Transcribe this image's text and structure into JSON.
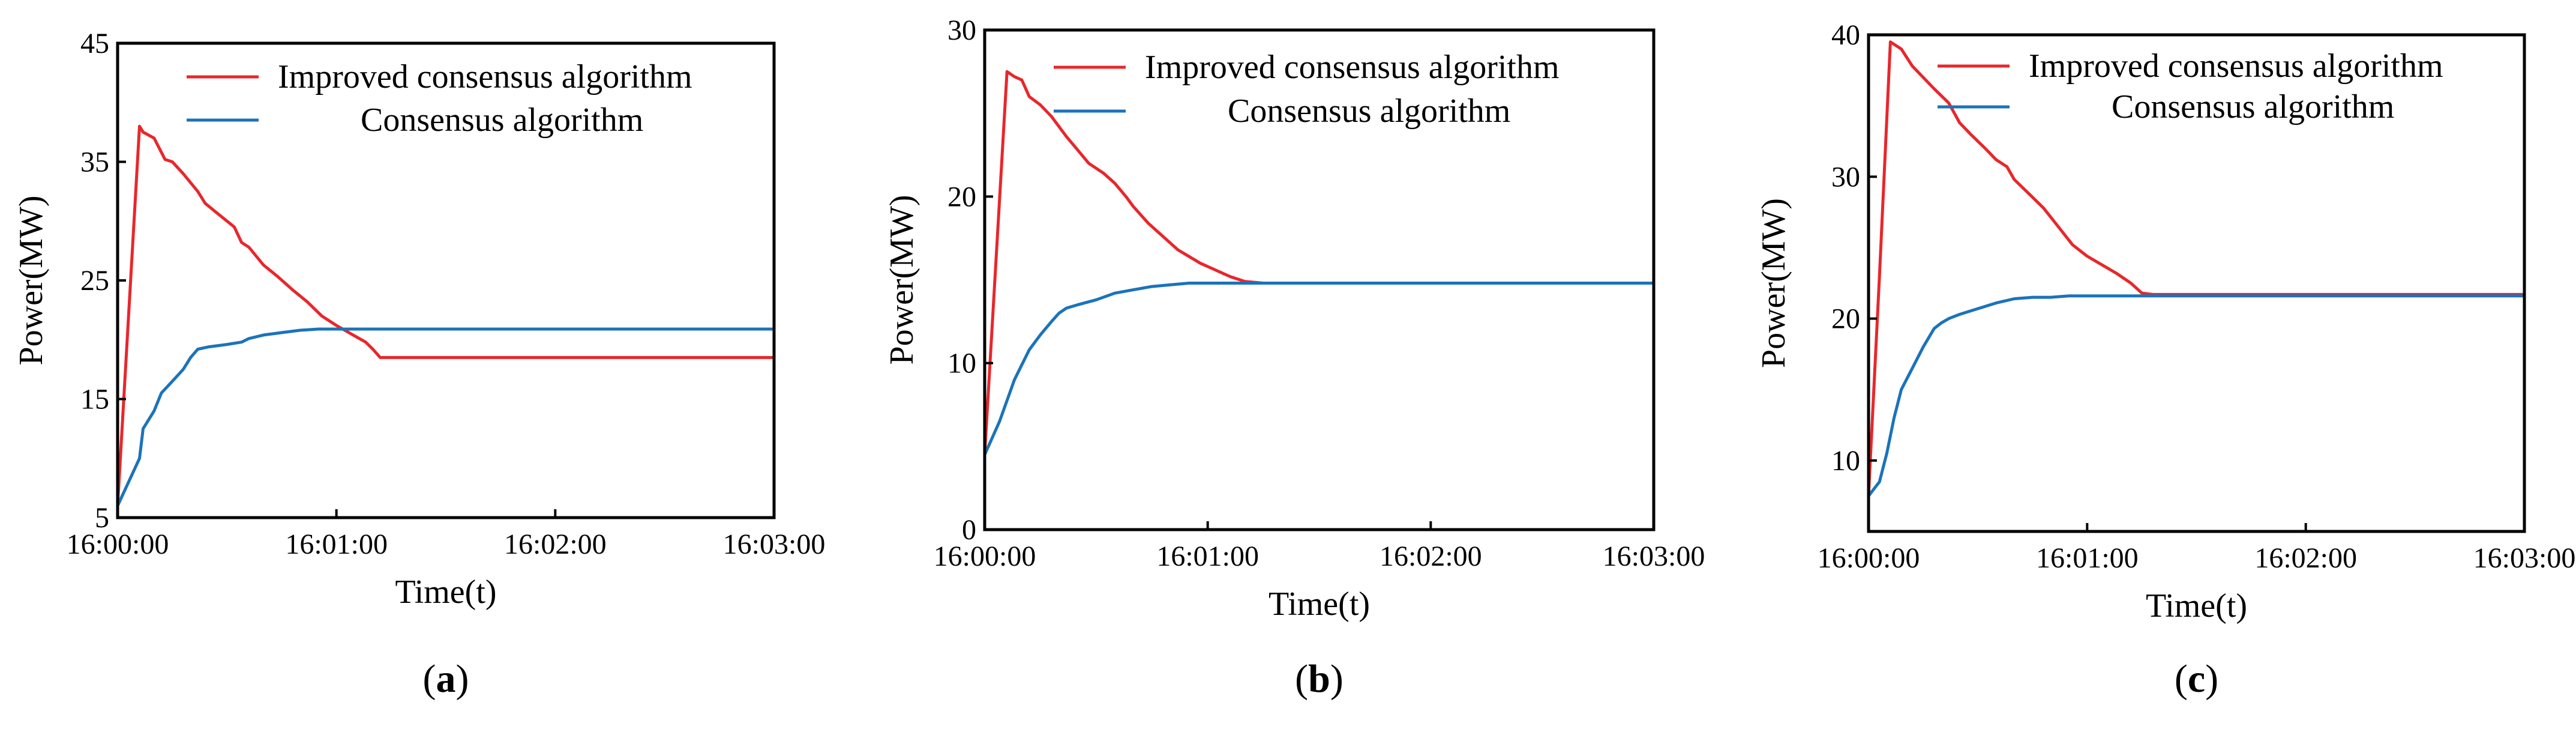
{
  "chart_data": [
    {
      "type": "line",
      "panel_label": "a",
      "xlabel": "Time(t)",
      "ylabel": "Power(MW)",
      "xlim": [
        0,
        180
      ],
      "ylim": [
        5,
        45
      ],
      "x_ticks": [
        0,
        60,
        120,
        180
      ],
      "x_tick_labels": [
        "16:00:00",
        "16:01:00",
        "16:02:00",
        "16:03:00"
      ],
      "y_ticks": [
        5,
        15,
        25,
        35,
        45
      ],
      "y_tick_labels": [
        "5",
        "15",
        "25",
        "35",
        "45"
      ],
      "legend": [
        "Improved consensus algorithm",
        "Consensus algorithm"
      ],
      "series": [
        {
          "name": "Improved consensus algorithm",
          "color": "#e8272b",
          "x": [
            0,
            6,
            7,
            10,
            13,
            15,
            18,
            22,
            24,
            28,
            32,
            34,
            36,
            40,
            44,
            48,
            52,
            56,
            60,
            64,
            68,
            70,
            72,
            75,
            80,
            180
          ],
          "y": [
            6,
            38,
            37.5,
            37,
            35.2,
            35,
            34,
            32.5,
            31.5,
            30.5,
            29.5,
            28.2,
            27.8,
            26.3,
            25.3,
            24.2,
            23.2,
            22,
            21.2,
            20.5,
            19.8,
            19.2,
            18.5,
            18.5,
            18.5,
            18.5
          ]
        },
        {
          "name": "Consensus algorithm",
          "color": "#1b73bb",
          "x": [
            0,
            6,
            7,
            10,
            12,
            15,
            18,
            20,
            22,
            25,
            30,
            34,
            36,
            40,
            45,
            50,
            55,
            60,
            65,
            70,
            75,
            180
          ],
          "y": [
            6,
            10,
            12.5,
            14,
            15.5,
            16.5,
            17.5,
            18.5,
            19.2,
            19.4,
            19.6,
            19.8,
            20.1,
            20.4,
            20.6,
            20.8,
            20.9,
            20.9,
            20.9,
            20.9,
            20.9,
            20.9
          ]
        }
      ]
    },
    {
      "type": "line",
      "panel_label": "b",
      "xlabel": "Time(t)",
      "ylabel": "Power(MW)",
      "xlim": [
        0,
        180
      ],
      "ylim": [
        0,
        30
      ],
      "x_ticks": [
        0,
        60,
        120,
        180
      ],
      "x_tick_labels": [
        "16:00:00",
        "16:01:00",
        "16:02:00",
        "16:03:00"
      ],
      "y_ticks": [
        0,
        10,
        20,
        30
      ],
      "y_tick_labels": [
        "0",
        "10",
        "20",
        "30"
      ],
      "legend": [
        "Improved consensus algorithm",
        "Consensus algorithm"
      ],
      "series": [
        {
          "name": "Improved consensus algorithm",
          "color": "#e8272b",
          "x": [
            0,
            6,
            8,
            10,
            12,
            15,
            18,
            22,
            25,
            28,
            32,
            35,
            38,
            40,
            44,
            48,
            52,
            55,
            58,
            62,
            66,
            70,
            75,
            78,
            180
          ],
          "y": [
            4.5,
            27.5,
            27.2,
            27,
            26,
            25.5,
            24.8,
            23.6,
            22.8,
            22,
            21.4,
            20.8,
            20,
            19.4,
            18.4,
            17.6,
            16.8,
            16.4,
            16,
            15.6,
            15.2,
            14.9,
            14.8,
            14.8,
            14.8
          ]
        },
        {
          "name": "Consensus algorithm",
          "color": "#1b73bb",
          "x": [
            0,
            4,
            8,
            12,
            15,
            18,
            20,
            22,
            25,
            30,
            35,
            40,
            45,
            50,
            55,
            60,
            70,
            80,
            180
          ],
          "y": [
            4.5,
            6.5,
            9,
            10.8,
            11.7,
            12.5,
            13,
            13.3,
            13.5,
            13.8,
            14.2,
            14.4,
            14.6,
            14.7,
            14.8,
            14.8,
            14.8,
            14.8,
            14.8
          ]
        }
      ]
    },
    {
      "type": "line",
      "panel_label": "c",
      "xlabel": "Time(t)",
      "ylabel": "Power(MW)",
      "xlim": [
        0,
        180
      ],
      "ylim": [
        5,
        40
      ],
      "x_ticks": [
        0,
        60,
        120,
        180
      ],
      "x_tick_labels": [
        "16:00:00",
        "16:01:00",
        "16:02:00",
        "16:03:00"
      ],
      "y_ticks": [
        10,
        20,
        30,
        40
      ],
      "y_tick_labels": [
        "10",
        "20",
        "30",
        "40"
      ],
      "legend": [
        "Improved consensus algorithm",
        "Consensus algorithm"
      ],
      "series": [
        {
          "name": "Improved consensus algorithm",
          "color": "#e8272b",
          "x": [
            0,
            3,
            6,
            9,
            12,
            15,
            18,
            22,
            25,
            28,
            32,
            35,
            38,
            40,
            44,
            48,
            52,
            56,
            60,
            64,
            68,
            72,
            75,
            78,
            180
          ],
          "y": [
            7.5,
            23,
            39.5,
            39,
            37.8,
            37,
            36.2,
            35.2,
            33.8,
            33,
            32,
            31.2,
            30.7,
            29.8,
            28.8,
            27.8,
            26.5,
            25.2,
            24.4,
            23.8,
            23.2,
            22.5,
            21.8,
            21.7,
            21.7
          ]
        },
        {
          "name": "Consensus algorithm",
          "color": "#1b73bb",
          "x": [
            0,
            3,
            5,
            7,
            9,
            12,
            15,
            18,
            20,
            22,
            25,
            30,
            35,
            40,
            45,
            50,
            55,
            60,
            70,
            80,
            180
          ],
          "y": [
            7.5,
            8.5,
            10.5,
            13,
            15,
            16.5,
            18,
            19.3,
            19.7,
            20,
            20.3,
            20.7,
            21.1,
            21.4,
            21.5,
            21.5,
            21.6,
            21.6,
            21.6,
            21.6,
            21.6
          ]
        }
      ]
    }
  ]
}
